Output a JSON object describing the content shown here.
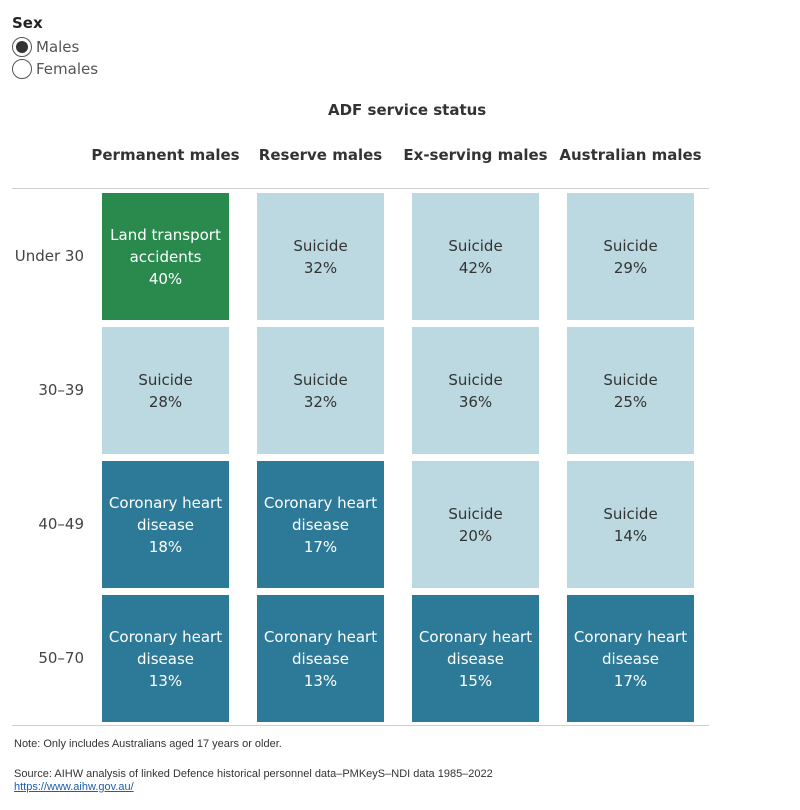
{
  "filter": {
    "title": "Sex",
    "options": [
      {
        "label": "Males",
        "checked": true
      },
      {
        "label": "Females",
        "checked": false
      }
    ]
  },
  "chart_data": {
    "type": "table",
    "title": "ADF service status",
    "columns": [
      "Permanent males",
      "Reserve males",
      "Ex-serving males",
      "Australian males"
    ],
    "rows": [
      "Under 30",
      "30–39",
      "40–49",
      "50–70"
    ],
    "cells": [
      [
        {
          "cause": "Land transport accidents",
          "lines": [
            "Land transport",
            "accidents"
          ],
          "value": "40%"
        },
        {
          "cause": "Suicide",
          "lines": [
            "Suicide"
          ],
          "value": "32%"
        },
        {
          "cause": "Suicide",
          "lines": [
            "Suicide"
          ],
          "value": "42%"
        },
        {
          "cause": "Suicide",
          "lines": [
            "Suicide"
          ],
          "value": "29%"
        }
      ],
      [
        {
          "cause": "Suicide",
          "lines": [
            "Suicide"
          ],
          "value": "28%"
        },
        {
          "cause": "Suicide",
          "lines": [
            "Suicide"
          ],
          "value": "32%"
        },
        {
          "cause": "Suicide",
          "lines": [
            "Suicide"
          ],
          "value": "36%"
        },
        {
          "cause": "Suicide",
          "lines": [
            "Suicide"
          ],
          "value": "25%"
        }
      ],
      [
        {
          "cause": "Coronary heart disease",
          "lines": [
            "Coronary heart",
            "disease"
          ],
          "value": "18%"
        },
        {
          "cause": "Coronary heart disease",
          "lines": [
            "Coronary heart",
            "disease"
          ],
          "value": "17%"
        },
        {
          "cause": "Suicide",
          "lines": [
            "Suicide"
          ],
          "value": "20%"
        },
        {
          "cause": "Suicide",
          "lines": [
            "Suicide"
          ],
          "value": "14%"
        }
      ],
      [
        {
          "cause": "Coronary heart disease",
          "lines": [
            "Coronary heart",
            "disease"
          ],
          "value": "13%"
        },
        {
          "cause": "Coronary heart disease",
          "lines": [
            "Coronary heart",
            "disease"
          ],
          "value": "13%"
        },
        {
          "cause": "Coronary heart disease",
          "lines": [
            "Coronary heart",
            "disease"
          ],
          "value": "15%"
        },
        {
          "cause": "Coronary heart disease",
          "lines": [
            "Coronary heart",
            "disease"
          ],
          "value": "17%"
        }
      ]
    ],
    "colors": {
      "Land transport accidents": {
        "bg": "#2a8a4e",
        "fg": "#ffffff"
      },
      "Suicide": {
        "bg": "#bcd9e2",
        "fg": "#333333"
      },
      "Coronary heart disease": {
        "bg": "#2d7a98",
        "fg": "#ffffff"
      }
    }
  },
  "footer": {
    "note": "Note: Only includes Australians aged 17 years or older.",
    "source": "Source: AIHW analysis of linked Defence historical personnel data–PMKeyS–NDI data 1985–2022",
    "link": "https://www.aihw.gov.au/"
  }
}
